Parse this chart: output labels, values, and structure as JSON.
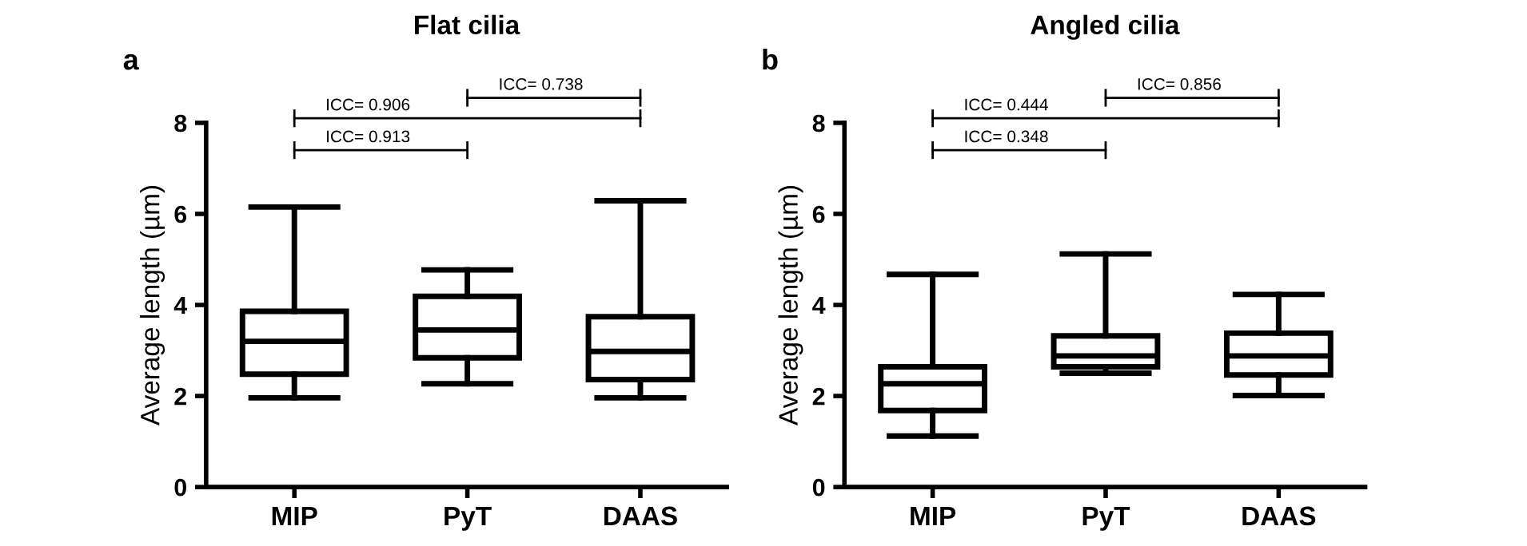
{
  "chart_data": [
    {
      "type": "box",
      "title": "Flat cilia",
      "ylabel": "Average length (µm)",
      "categories": [
        "MIP",
        "PyT",
        "DAAS"
      ],
      "ylim": [
        0,
        8
      ],
      "yticks": [
        0,
        2,
        4,
        6,
        8
      ],
      "grid": false,
      "annotations": [
        "a",
        "ICC= 0.738",
        "ICC= 0.906",
        "ICC= 0.913"
      ],
      "boxes": [
        {
          "low": 1.96,
          "q1": 2.48,
          "median": 3.2,
          "q3": 3.86,
          "high": 6.15
        },
        {
          "low": 2.27,
          "q1": 2.84,
          "median": 3.45,
          "q3": 4.19,
          "high": 4.77
        },
        {
          "low": 1.96,
          "q1": 2.36,
          "median": 2.98,
          "q3": 3.74,
          "high": 6.29
        }
      ]
    },
    {
      "type": "box",
      "title": "Angled cilia",
      "ylabel": "Average length (µm)",
      "categories": [
        "MIP",
        "PyT",
        "DAAS"
      ],
      "ylim": [
        0,
        8
      ],
      "yticks": [
        0,
        2,
        4,
        6,
        8
      ],
      "grid": false,
      "annotations": [
        "b",
        "ICC= 0.856",
        "ICC= 0.444",
        "ICC= 0.348"
      ],
      "boxes": [
        {
          "low": 1.12,
          "q1": 1.68,
          "median": 2.27,
          "q3": 2.64,
          "high": 4.67
        },
        {
          "low": 2.5,
          "q1": 2.64,
          "median": 2.88,
          "q3": 3.32,
          "high": 5.12
        },
        {
          "low": 2.01,
          "q1": 2.46,
          "median": 2.88,
          "q3": 3.38,
          "high": 4.23
        }
      ]
    }
  ]
}
